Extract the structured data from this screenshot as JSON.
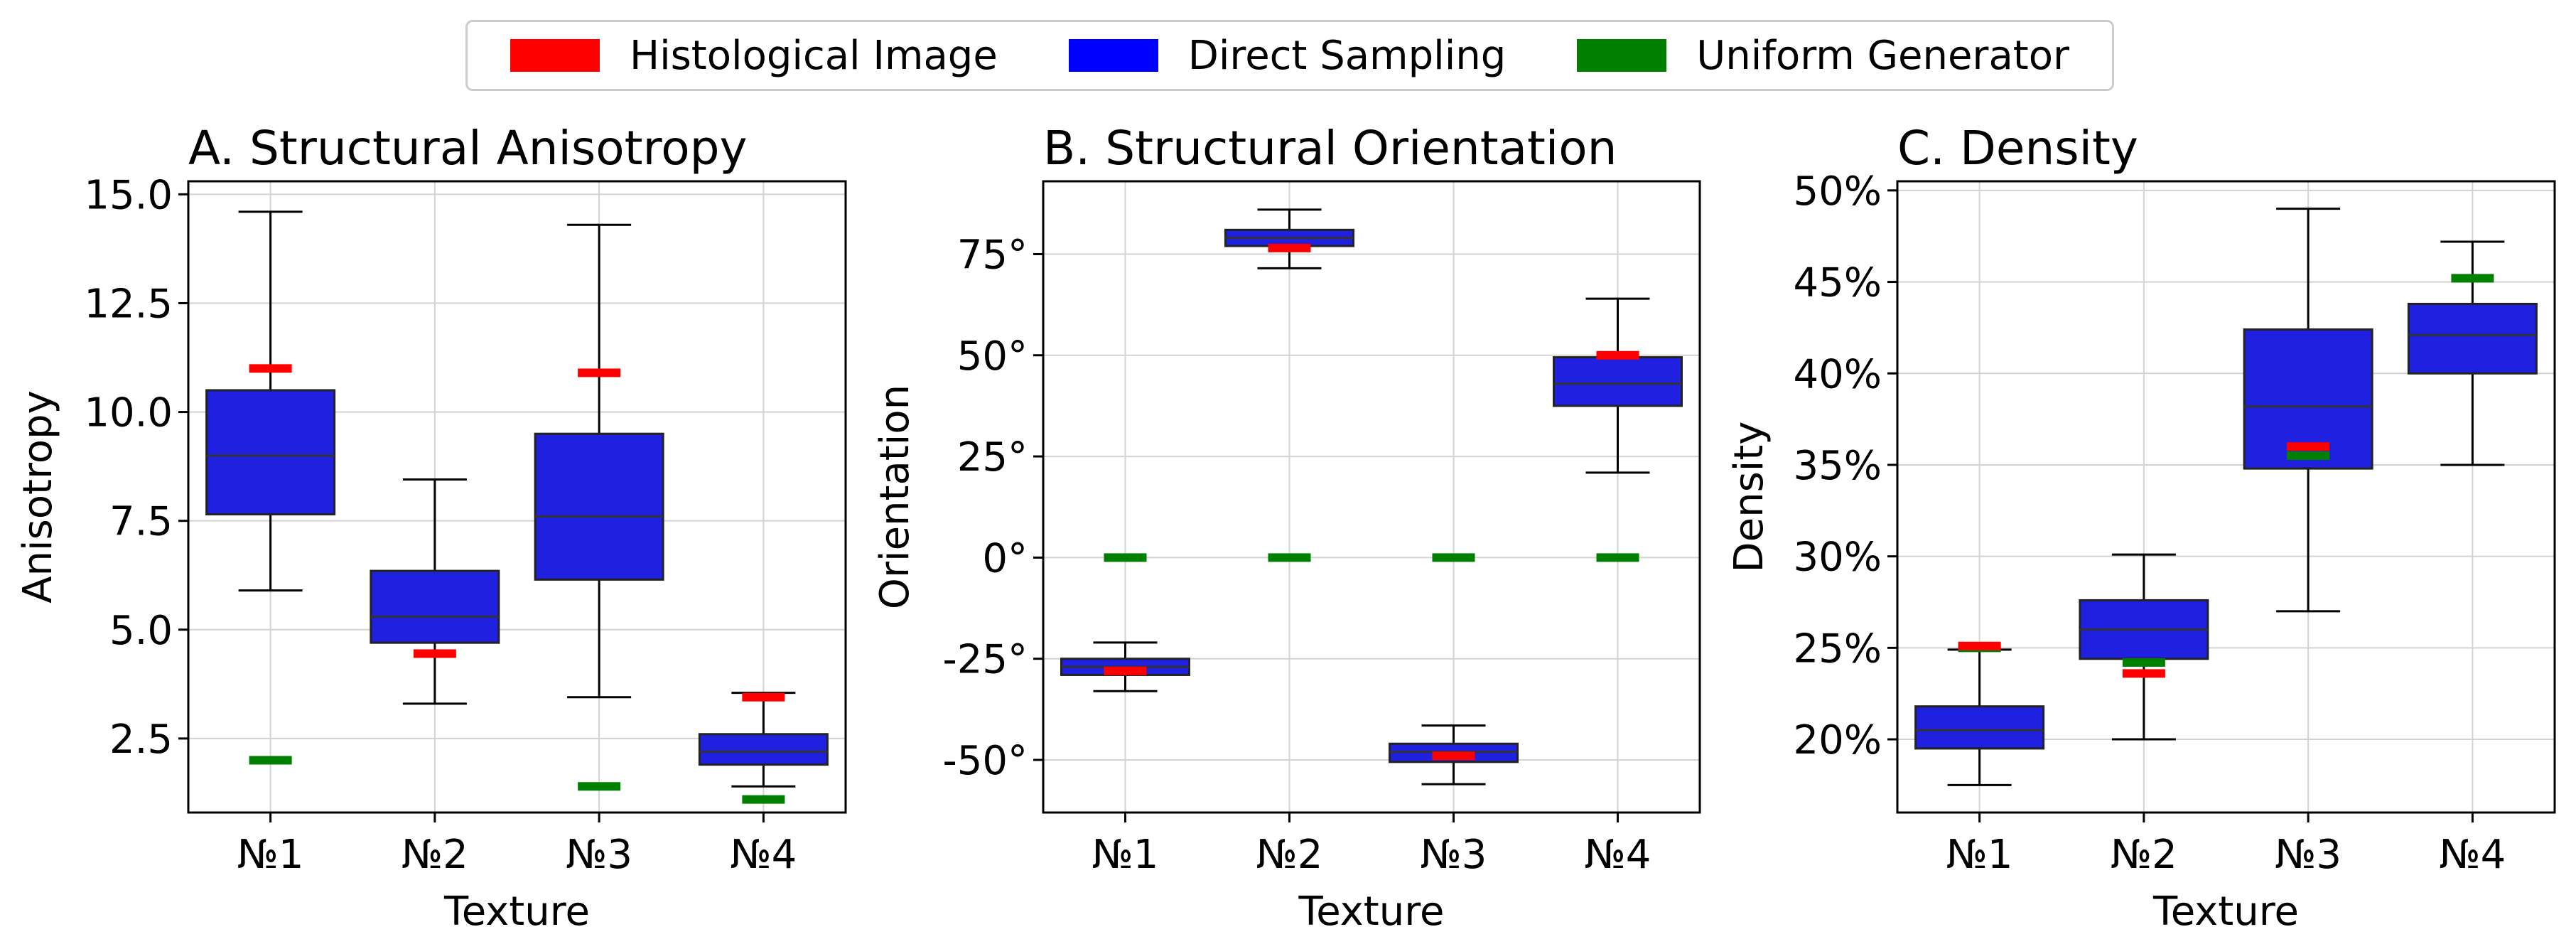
{
  "legend": {
    "items": [
      {
        "label": "Histological Image",
        "color": "#ff0000"
      },
      {
        "label": "Direct Sampling",
        "color": "#0000ff"
      },
      {
        "label": "Uniform Generator",
        "color": "#008000"
      }
    ]
  },
  "colors": {
    "box_fill": "#2020e0",
    "histological": "#ff0000",
    "uniform": "#008000",
    "grid": "#d3d3d3"
  },
  "chart_data": [
    {
      "type": "box",
      "title": "A. Structural Anisotropy",
      "xlabel": "Texture",
      "ylabel": "Anisotropy",
      "categories": [
        "№1",
        "№2",
        "№3",
        "№4"
      ],
      "ylim": [
        0.8,
        15.3
      ],
      "yticks": [
        2.5,
        5.0,
        7.5,
        10.0,
        12.5,
        15.0
      ],
      "ytick_labels": [
        "2.5",
        "5.0",
        "7.5",
        "10.0",
        "12.5",
        "15.0"
      ],
      "grid": true,
      "series": [
        {
          "name": "Direct Sampling",
          "boxes": [
            {
              "whislo": 5.9,
              "q1": 7.65,
              "med": 9.0,
              "q3": 10.5,
              "whishi": 14.6
            },
            {
              "whislo": 3.3,
              "q1": 4.7,
              "med": 5.3,
              "q3": 6.35,
              "whishi": 8.45
            },
            {
              "whislo": 3.45,
              "q1": 6.15,
              "med": 7.6,
              "q3": 9.5,
              "whishi": 14.3
            },
            {
              "whislo": 1.4,
              "q1": 1.9,
              "med": 2.2,
              "q3": 2.6,
              "whishi": 3.55
            }
          ]
        },
        {
          "name": "Histological Image",
          "values": [
            11.0,
            4.45,
            10.9,
            3.45
          ]
        },
        {
          "name": "Uniform Generator",
          "values": [
            2.0,
            null,
            1.4,
            1.1
          ]
        }
      ]
    },
    {
      "type": "box",
      "title": "B. Structural Orientation",
      "xlabel": "Texture",
      "ylabel": "Orientation",
      "categories": [
        "№1",
        "№2",
        "№3",
        "№4"
      ],
      "ylim": [
        -63,
        93
      ],
      "yticks": [
        -50,
        -25,
        0,
        25,
        50,
        75
      ],
      "ytick_labels": [
        "-50°",
        "-25°",
        "0°",
        "25°",
        "50°",
        "75°"
      ],
      "grid": true,
      "series": [
        {
          "name": "Direct Sampling",
          "boxes": [
            {
              "whislo": -33,
              "q1": -29,
              "med": -27,
              "q3": -25,
              "whishi": -21
            },
            {
              "whislo": 71.5,
              "q1": 77,
              "med": 79,
              "q3": 81,
              "whishi": 86
            },
            {
              "whislo": -56,
              "q1": -50.5,
              "med": -48,
              "q3": -46,
              "whishi": -41.5
            },
            {
              "whislo": 21,
              "q1": 37.5,
              "med": 43,
              "q3": 49.5,
              "whishi": 64
            }
          ]
        },
        {
          "name": "Histological Image",
          "values": [
            -28,
            76.5,
            -49,
            50
          ]
        },
        {
          "name": "Uniform Generator",
          "values": [
            0,
            0,
            0,
            0
          ]
        }
      ]
    },
    {
      "type": "box",
      "title": "C. Density",
      "xlabel": "Texture",
      "ylabel": "Density",
      "categories": [
        "№1",
        "№2",
        "№3",
        "№4"
      ],
      "ylim": [
        16,
        50.5
      ],
      "yticks": [
        20,
        25,
        30,
        35,
        40,
        45,
        50
      ],
      "ytick_labels": [
        "20%",
        "25%",
        "30%",
        "35%",
        "40%",
        "45%",
        "50%"
      ],
      "grid": true,
      "series": [
        {
          "name": "Direct Sampling",
          "boxes": [
            {
              "whislo": 17.5,
              "q1": 19.5,
              "med": 20.5,
              "q3": 21.8,
              "whishi": 24.9
            },
            {
              "whislo": 20.0,
              "q1": 24.4,
              "med": 26.0,
              "q3": 27.6,
              "whishi": 30.1
            },
            {
              "whislo": 27.0,
              "q1": 34.8,
              "med": 38.2,
              "q3": 42.4,
              "whishi": 49.0
            },
            {
              "whislo": 35.0,
              "q1": 40.0,
              "med": 42.1,
              "q3": 43.8,
              "whishi": 47.2
            }
          ]
        },
        {
          "name": "Histological Image",
          "values": [
            25.1,
            23.6,
            36.0,
            null
          ]
        },
        {
          "name": "Uniform Generator",
          "values": [
            25.0,
            24.2,
            35.5,
            45.2
          ]
        }
      ]
    }
  ]
}
